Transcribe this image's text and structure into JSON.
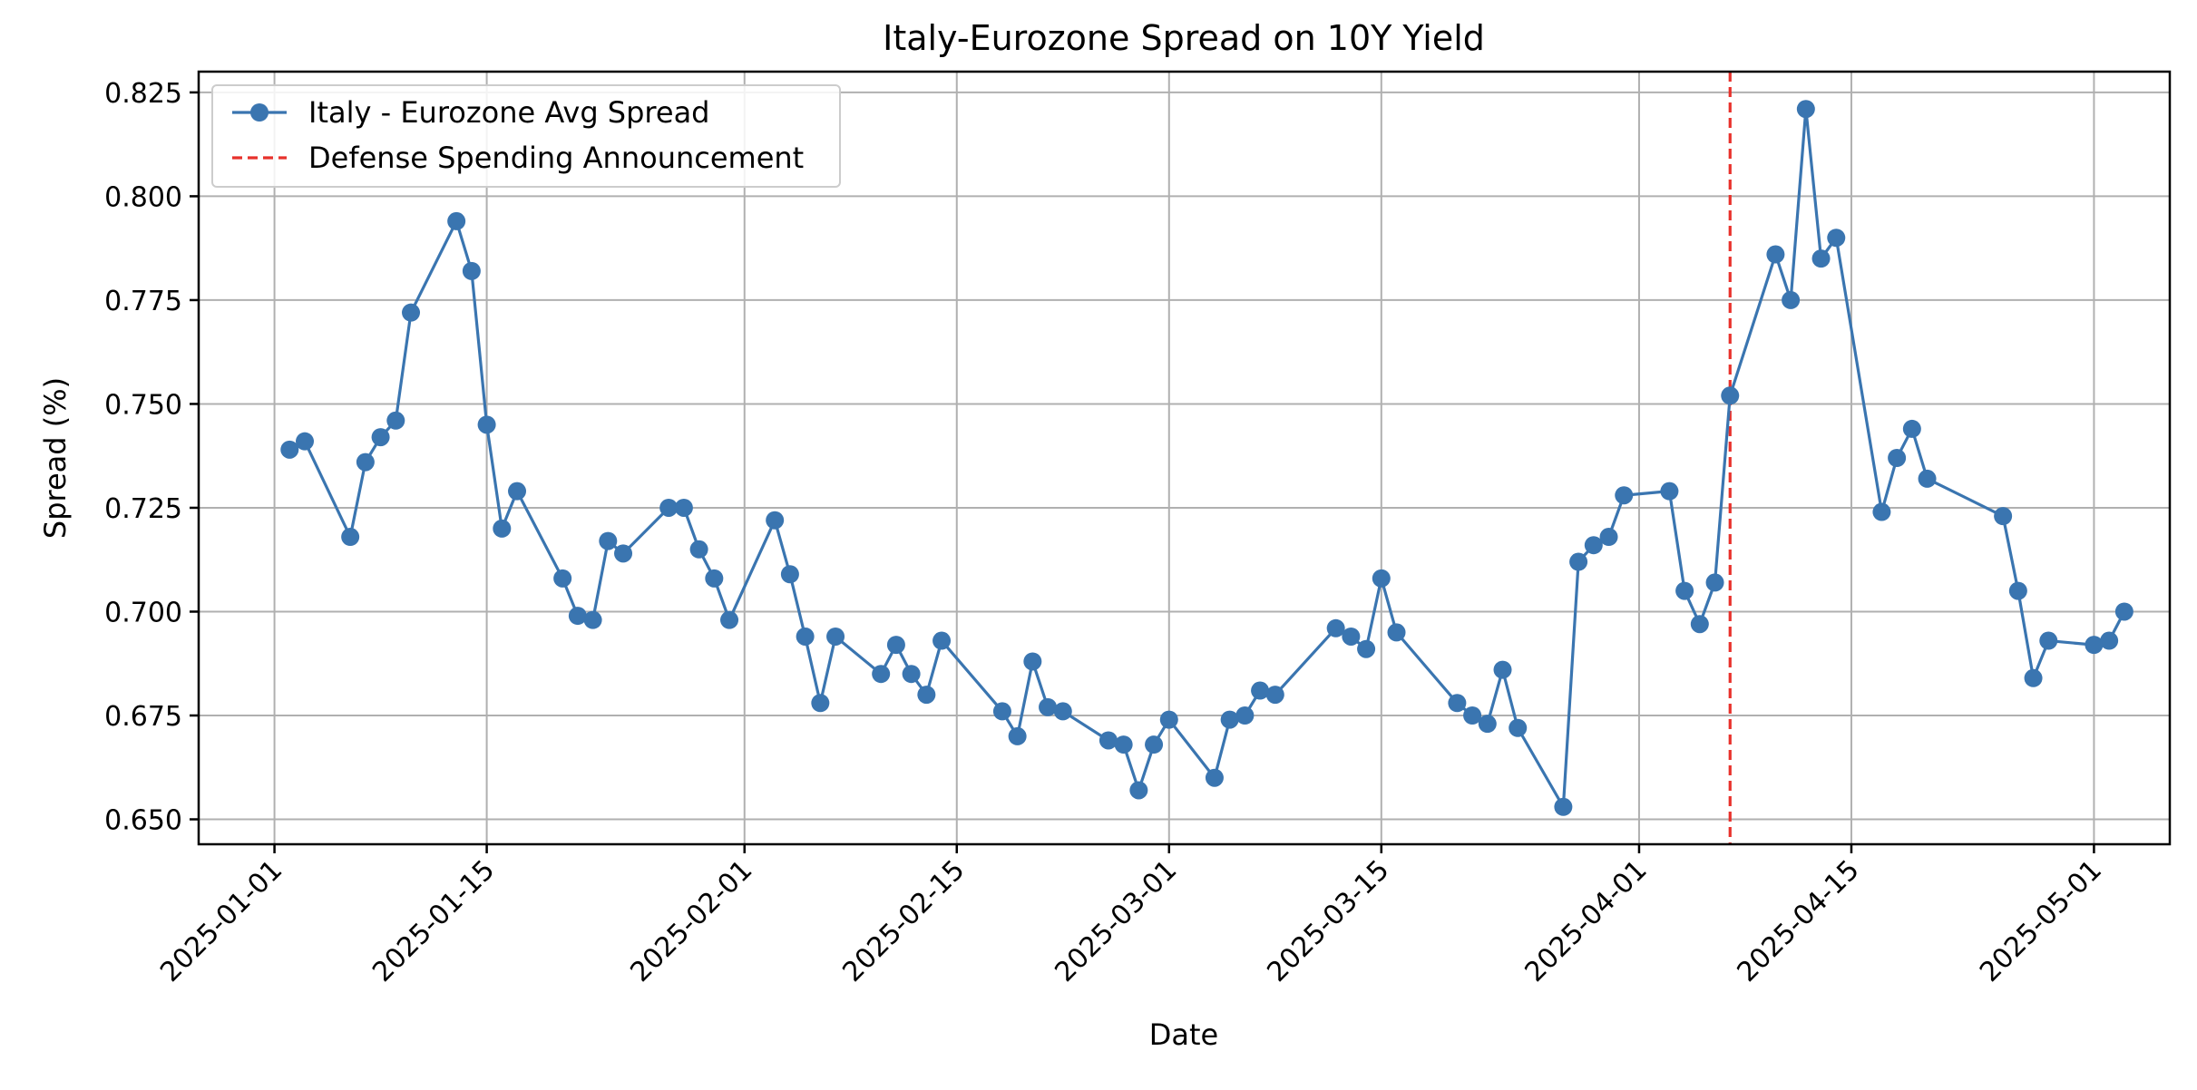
{
  "chart_data": {
    "type": "line",
    "title": "Italy-Eurozone Spread on 10Y Yield",
    "xlabel": "Date",
    "ylabel": "Spread (%)",
    "x_ticks": [
      "2025-01-01",
      "2025-01-15",
      "2025-02-01",
      "2025-02-15",
      "2025-03-01",
      "2025-03-15",
      "2025-04-01",
      "2025-04-15",
      "2025-05-01"
    ],
    "y_ticks": [
      "0.650",
      "0.675",
      "0.700",
      "0.725",
      "0.750",
      "0.775",
      "0.800",
      "0.825"
    ],
    "xlim": [
      "2024-12-27",
      "2025-05-06"
    ],
    "ylim": [
      0.644,
      0.83
    ],
    "grid": true,
    "legend_position": "upper left",
    "colors": {
      "series": "#3a75b0",
      "event": "#e8312b"
    },
    "series": [
      {
        "name": "Italy - Eurozone Avg Spread",
        "style": "line-with-markers",
        "points": [
          [
            "2025-01-02",
            0.739
          ],
          [
            "2025-01-03",
            0.741
          ],
          [
            "2025-01-06",
            0.718
          ],
          [
            "2025-01-07",
            0.736
          ],
          [
            "2025-01-08",
            0.742
          ],
          [
            "2025-01-09",
            0.746
          ],
          [
            "2025-01-10",
            0.772
          ],
          [
            "2025-01-13",
            0.794
          ],
          [
            "2025-01-14",
            0.782
          ],
          [
            "2025-01-15",
            0.745
          ],
          [
            "2025-01-16",
            0.72
          ],
          [
            "2025-01-17",
            0.729
          ],
          [
            "2025-01-20",
            0.708
          ],
          [
            "2025-01-21",
            0.699
          ],
          [
            "2025-01-22",
            0.698
          ],
          [
            "2025-01-23",
            0.717
          ],
          [
            "2025-01-24",
            0.714
          ],
          [
            "2025-01-27",
            0.725
          ],
          [
            "2025-01-28",
            0.725
          ],
          [
            "2025-01-29",
            0.715
          ],
          [
            "2025-01-30",
            0.708
          ],
          [
            "2025-01-31",
            0.698
          ],
          [
            "2025-02-03",
            0.722
          ],
          [
            "2025-02-04",
            0.709
          ],
          [
            "2025-02-05",
            0.694
          ],
          [
            "2025-02-06",
            0.678
          ],
          [
            "2025-02-07",
            0.694
          ],
          [
            "2025-02-10",
            0.685
          ],
          [
            "2025-02-11",
            0.692
          ],
          [
            "2025-02-12",
            0.685
          ],
          [
            "2025-02-13",
            0.68
          ],
          [
            "2025-02-14",
            0.693
          ],
          [
            "2025-02-18",
            0.676
          ],
          [
            "2025-02-19",
            0.67
          ],
          [
            "2025-02-20",
            0.688
          ],
          [
            "2025-02-21",
            0.677
          ],
          [
            "2025-02-22",
            0.676
          ],
          [
            "2025-02-25",
            0.669
          ],
          [
            "2025-02-26",
            0.668
          ],
          [
            "2025-02-27",
            0.657
          ],
          [
            "2025-02-28",
            0.668
          ],
          [
            "2025-03-01",
            0.674
          ],
          [
            "2025-03-04",
            0.66
          ],
          [
            "2025-03-05",
            0.674
          ],
          [
            "2025-03-06",
            0.675
          ],
          [
            "2025-03-07",
            0.681
          ],
          [
            "2025-03-08",
            0.68
          ],
          [
            "2025-03-12",
            0.696
          ],
          [
            "2025-03-13",
            0.694
          ],
          [
            "2025-03-14",
            0.691
          ],
          [
            "2025-03-15",
            0.708
          ],
          [
            "2025-03-16",
            0.695
          ],
          [
            "2025-03-20",
            0.678
          ],
          [
            "2025-03-21",
            0.675
          ],
          [
            "2025-03-22",
            0.673
          ],
          [
            "2025-03-23",
            0.686
          ],
          [
            "2025-03-24",
            0.672
          ],
          [
            "2025-03-27",
            0.653
          ],
          [
            "2025-03-28",
            0.712
          ],
          [
            "2025-03-29",
            0.716
          ],
          [
            "2025-03-30",
            0.718
          ],
          [
            "2025-03-31",
            0.728
          ],
          [
            "2025-04-03",
            0.729
          ],
          [
            "2025-04-04",
            0.705
          ],
          [
            "2025-04-05",
            0.697
          ],
          [
            "2025-04-06",
            0.707
          ],
          [
            "2025-04-07",
            0.752
          ],
          [
            "2025-04-10",
            0.786
          ],
          [
            "2025-04-11",
            0.775
          ],
          [
            "2025-04-12",
            0.821
          ],
          [
            "2025-04-13",
            0.785
          ],
          [
            "2025-04-14",
            0.79
          ],
          [
            "2025-04-17",
            0.724
          ],
          [
            "2025-04-18",
            0.737
          ],
          [
            "2025-04-19",
            0.744
          ],
          [
            "2025-04-20",
            0.732
          ],
          [
            "2025-04-25",
            0.723
          ],
          [
            "2025-04-26",
            0.705
          ],
          [
            "2025-04-27",
            0.684
          ],
          [
            "2025-04-28",
            0.693
          ],
          [
            "2025-05-01",
            0.692
          ],
          [
            "2025-05-02",
            0.693
          ],
          [
            "2025-05-03",
            0.7
          ]
        ]
      }
    ],
    "event_lines": [
      {
        "name": "Defense Spending Announcement",
        "x": "2025-04-07",
        "style": "dashed"
      }
    ]
  }
}
